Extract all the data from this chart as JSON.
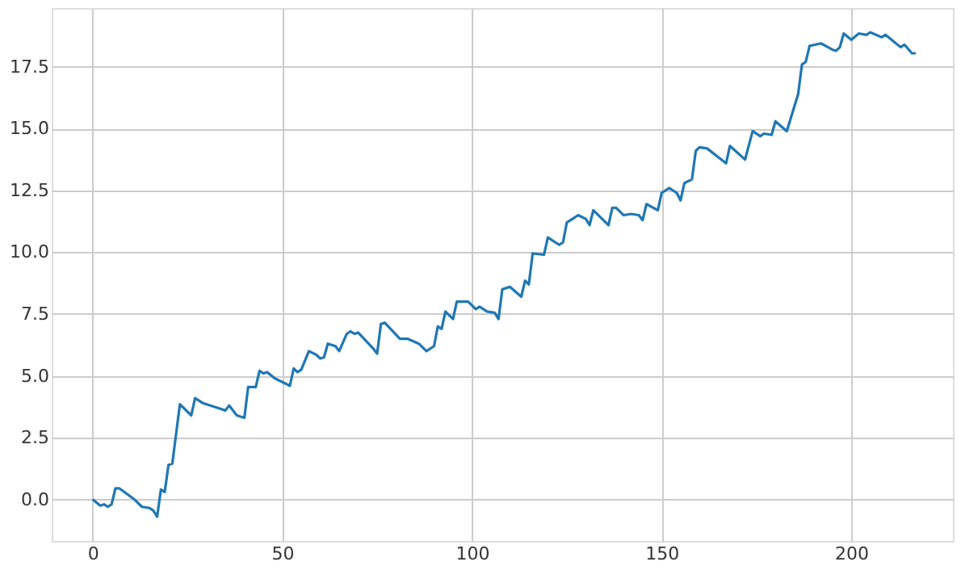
{
  "chart_data": {
    "type": "line",
    "xlim": [
      -10.8,
      226.8
    ],
    "ylim": [
      -1.68,
      19.88
    ],
    "xticks": [
      0,
      50,
      100,
      150,
      200
    ],
    "yticks": [
      {
        "value": 0,
        "label": "0.0"
      },
      {
        "value": 2.5,
        "label": "2.5"
      },
      {
        "value": 5,
        "label": "5.0"
      },
      {
        "value": 7.5,
        "label": "7.5"
      },
      {
        "value": 10,
        "label": "10.0"
      },
      {
        "value": 12.5,
        "label": "12.5"
      },
      {
        "value": 15,
        "label": "15.0"
      },
      {
        "value": 17.5,
        "label": "17.5"
      }
    ],
    "grid": true,
    "marker": "none",
    "line_style": "solid",
    "series": [
      {
        "color": "#1f77b4",
        "x": [
          0,
          2,
          3,
          4,
          5,
          6,
          7,
          11,
          13,
          15,
          16,
          17,
          18,
          19,
          20,
          21,
          23,
          26,
          27,
          29,
          31,
          33,
          35,
          36,
          38,
          40,
          41,
          43,
          44,
          45,
          46,
          48,
          52,
          53,
          54,
          55,
          57,
          59,
          60,
          61,
          62,
          64,
          65,
          67,
          68,
          69,
          70,
          74,
          75,
          76,
          77,
          81,
          83,
          86,
          88,
          90,
          91,
          92,
          93,
          95,
          96,
          99,
          101,
          102,
          104,
          106,
          107,
          108,
          110,
          113,
          114,
          115,
          116,
          119,
          120,
          123,
          124,
          125,
          127,
          128,
          130,
          131,
          132,
          136,
          137,
          138,
          140,
          142,
          144,
          145,
          146,
          149,
          150,
          152,
          154,
          155,
          156,
          158,
          159,
          160,
          162,
          167,
          168,
          172,
          174,
          176,
          177,
          179,
          180,
          183,
          186,
          187,
          188,
          189,
          192,
          195,
          196,
          197,
          198,
          200,
          202,
          204,
          205,
          208,
          209,
          211,
          213,
          214,
          216,
          217
        ],
        "values": [
          0,
          -0.25,
          -0.2,
          -0.3,
          -0.2,
          0.45,
          0.45,
          0.0,
          -0.3,
          -0.35,
          -0.45,
          -0.7,
          0.4,
          0.3,
          1.4,
          1.45,
          3.85,
          3.4,
          4.1,
          3.9,
          3.8,
          3.7,
          3.6,
          3.8,
          3.4,
          3.3,
          4.55,
          4.55,
          5.2,
          5.1,
          5.15,
          4.9,
          4.6,
          5.3,
          5.15,
          5.25,
          6.0,
          5.85,
          5.7,
          5.75,
          6.3,
          6.2,
          6.0,
          6.7,
          6.8,
          6.7,
          6.75,
          6.1,
          5.9,
          7.1,
          7.15,
          6.5,
          6.5,
          6.3,
          6.0,
          6.2,
          7.0,
          6.9,
          7.6,
          7.3,
          8.0,
          8.0,
          7.7,
          7.8,
          7.6,
          7.55,
          7.3,
          8.5,
          8.6,
          8.2,
          8.85,
          8.7,
          9.95,
          9.9,
          10.6,
          10.3,
          10.4,
          11.2,
          11.4,
          11.5,
          11.35,
          11.1,
          11.7,
          11.1,
          11.8,
          11.8,
          11.5,
          11.55,
          11.5,
          11.3,
          11.95,
          11.7,
          12.4,
          12.6,
          12.4,
          12.1,
          12.8,
          12.95,
          14.1,
          14.25,
          14.2,
          13.6,
          14.3,
          13.75,
          14.9,
          14.7,
          14.8,
          14.75,
          15.3,
          14.9,
          16.4,
          17.6,
          17.7,
          18.35,
          18.45,
          18.2,
          18.15,
          18.3,
          18.85,
          18.6,
          18.85,
          18.8,
          18.9,
          18.7,
          18.8,
          18.55,
          18.3,
          18.4,
          18.05,
          18.05
        ]
      }
    ]
  }
}
